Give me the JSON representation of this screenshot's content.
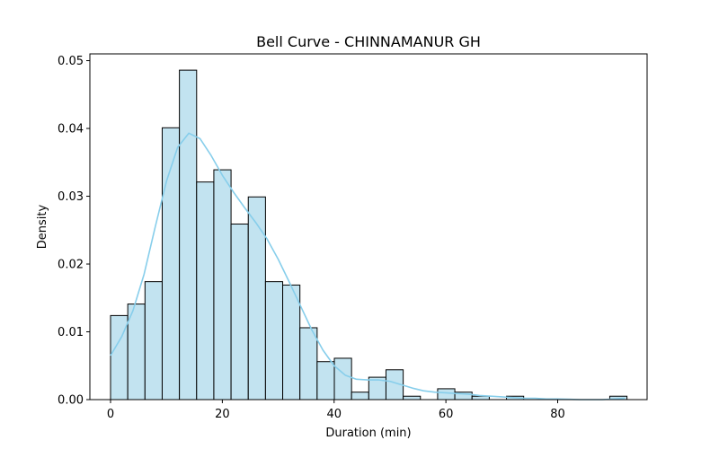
{
  "chart_data": {
    "type": "bar",
    "title": "Bell Curve - CHINNAMANUR GH",
    "xlabel": "Duration (min)",
    "ylabel": "Density",
    "xlim": [
      -3.7,
      96.0
    ],
    "ylim": [
      0,
      0.051
    ],
    "xticks": [
      0,
      20,
      40,
      60,
      80
    ],
    "yticks": [
      0.0,
      0.01,
      0.02,
      0.03,
      0.04,
      0.05
    ],
    "ytick_labels": [
      "0.00",
      "0.01",
      "0.02",
      "0.03",
      "0.04",
      "0.05"
    ],
    "bar_color": "#c2e3f0",
    "bar_edge_color": "#000000",
    "kde_color": "#87ceeb",
    "bin_edges": [
      0,
      3.08,
      6.16,
      9.24,
      12.32,
      15.4,
      18.48,
      21.56,
      24.64,
      27.72,
      30.8,
      33.88,
      36.96,
      40.04,
      43.12,
      46.2,
      49.28,
      52.36,
      55.44,
      58.52,
      61.6,
      64.68,
      67.76,
      70.84,
      73.92,
      77.0,
      80.08,
      83.16,
      86.24,
      89.32,
      92.4
    ],
    "densities": [
      0.0124,
      0.0141,
      0.0174,
      0.0401,
      0.0486,
      0.0321,
      0.0339,
      0.0259,
      0.0299,
      0.0174,
      0.0169,
      0.0106,
      0.0056,
      0.0061,
      0.0011,
      0.0033,
      0.0044,
      0.0005,
      0.0,
      0.0016,
      0.0011,
      0.0005,
      0.0,
      0.0005,
      0.0,
      0.0,
      0.0,
      0.0,
      0.0,
      0.0005
    ],
    "kde": {
      "x": [
        0,
        2,
        4,
        6,
        8,
        10,
        12,
        14,
        16,
        18,
        20,
        22,
        24,
        26,
        28,
        30,
        32,
        34,
        36,
        38,
        40,
        42,
        44,
        46,
        48,
        50,
        52,
        54,
        56,
        58,
        60,
        62,
        64,
        66,
        68,
        70,
        72,
        74,
        76,
        78,
        80,
        84,
        88,
        92
      ],
      "y": [
        0.0065,
        0.0093,
        0.0131,
        0.0185,
        0.0255,
        0.0322,
        0.0372,
        0.0393,
        0.0385,
        0.036,
        0.0331,
        0.0306,
        0.0283,
        0.0261,
        0.0237,
        0.0207,
        0.0173,
        0.0138,
        0.0103,
        0.0073,
        0.005,
        0.0036,
        0.003,
        0.0029,
        0.0029,
        0.0027,
        0.0022,
        0.0017,
        0.0013,
        0.0011,
        0.001,
        0.0009,
        0.0008,
        0.0006,
        0.0005,
        0.0004,
        0.0003,
        0.0002,
        0.0002,
        0.0001,
        0.0001,
        0.0,
        0.0,
        0.0002
      ]
    }
  }
}
